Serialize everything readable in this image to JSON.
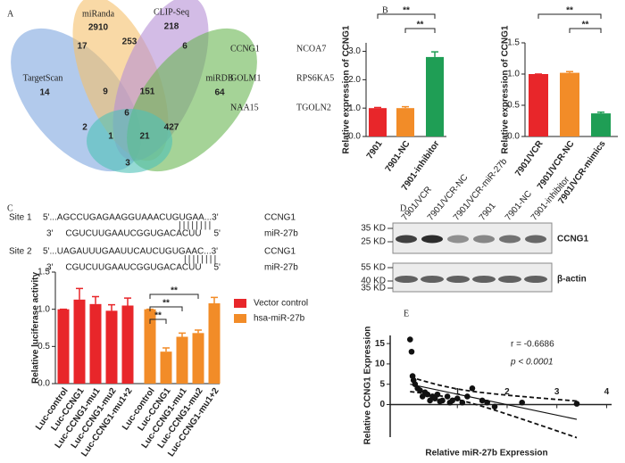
{
  "panel_labels": [
    "A",
    "B",
    "C",
    "D",
    "E"
  ],
  "venn": {
    "sets": [
      {
        "name": "TargetScan",
        "count": 14
      },
      {
        "name": "miRanda",
        "count": 2910
      },
      {
        "name": "CLIP-Seq",
        "count": 218
      },
      {
        "name": "miRDB",
        "count": 64
      }
    ],
    "regions": [
      17,
      253,
      6,
      9,
      151,
      6,
      2,
      1,
      21,
      427,
      3
    ]
  },
  "genes": [
    "CCNG1",
    "NCOA7",
    "GOLM1",
    "RPS6KA5",
    "NAA15",
    "TGOLN2"
  ],
  "sites": [
    {
      "label": "Site 1",
      "target": "5'...AGCCUGAGAAGGUAAACUGUGAA...3'",
      "target_name": "CCNG1",
      "pairing": "||||||||",
      "mirna": "3'     CGUCUUGAAUCGGUGACACUU     5'",
      "mirna_name": "miR-27b"
    },
    {
      "label": "Site 2",
      "target": "5'...UAGAUUUGAAUUCAUCUGUGAAC...3'",
      "target_name": "CCNG1",
      "pairing": "||||||||",
      "mirna": "3'     CGUCUUGAAUCGGUGACACUU     5'",
      "mirna_name": "miR-27b"
    }
  ],
  "blot": {
    "lanes": [
      "7901/VCR",
      "7901/VCR-NC",
      "7901/VCR-miR-27b",
      "7901",
      "7901-NC",
      "7901-inhibitor"
    ],
    "markers": [
      "35 KD",
      "25 KD",
      "55 KD",
      "40 KD",
      "35 KD"
    ],
    "proteins": [
      "CCNG1",
      "β-actin"
    ]
  },
  "chart_data": [
    {
      "type": "bar",
      "ylabel": "Relative expression of CCNG1",
      "categories": [
        "7901",
        "7901-NC",
        "7901-inhibitor"
      ],
      "values": [
        1.0,
        1.0,
        2.8
      ],
      "errors": [
        0.02,
        0.05,
        0.18
      ],
      "colors": [
        "#e8262a",
        "#f28c28",
        "#1f9e55"
      ],
      "ylim": [
        0,
        3.3
      ],
      "yticks": [
        {
          "value": 0,
          "label": "0.0"
        },
        {
          "value": 1,
          "label": "1.0"
        },
        {
          "value": 2,
          "label": "2.0"
        },
        {
          "value": 3,
          "label": "3.0"
        }
      ],
      "significance": [
        "**",
        "**"
      ]
    },
    {
      "type": "bar",
      "ylabel": "Relative expression of CCNG1",
      "categories": [
        "7901/VCR",
        "7901/VCR-NC",
        "7901/VCR-mimics"
      ],
      "values": [
        1.0,
        1.02,
        0.37
      ],
      "errors": [
        0.0,
        0.02,
        0.02
      ],
      "colors": [
        "#e8262a",
        "#f28c28",
        "#1f9e55"
      ],
      "ylim": [
        0,
        1.5
      ],
      "yticks": [
        {
          "value": 0,
          "label": "0.0"
        },
        0.5,
        {
          "value": 1,
          "label": "1.0"
        },
        1.5
      ],
      "significance": [
        "**",
        "**"
      ]
    },
    {
      "type": "bar",
      "ylabel": "Relative luciferase activity",
      "categories": [
        "Luc-control",
        "Luc-CCNG1",
        "Luc-CCNG1-mu1",
        "Luc-CCNG1-mu2",
        "Luc-CCNG1-mu1+2"
      ],
      "series": [
        {
          "name": "Vector control",
          "color": "#e8262a",
          "values": [
            1.0,
            1.13,
            1.07,
            0.98,
            1.05
          ],
          "errors": [
            0.0,
            0.15,
            0.1,
            0.08,
            0.1
          ]
        },
        {
          "name": "hsa-miR-27b",
          "color": "#f28c28",
          "values": [
            1.0,
            0.43,
            0.63,
            0.68,
            1.08
          ],
          "errors": [
            0.0,
            0.05,
            0.05,
            0.04,
            0.08
          ]
        }
      ],
      "ylim": [
        0,
        1.5
      ],
      "yticks": [
        {
          "value": 0,
          "label": "0.0"
        },
        0.5,
        {
          "value": 1,
          "label": "1.0"
        },
        1.5
      ],
      "significance": [
        "**",
        "**",
        "**"
      ]
    },
    {
      "type": "scatter",
      "xlabel": "Relative miR-27b Expression",
      "ylabel": "Relative CCNG1 Expression",
      "annotations": [
        "r = -0.6686",
        "p < 0.0001"
      ],
      "x": [
        0.05,
        0.08,
        0.1,
        0.12,
        0.15,
        0.2,
        0.25,
        0.3,
        0.35,
        0.4,
        0.45,
        0.5,
        0.55,
        0.6,
        0.65,
        0.7,
        0.8,
        0.85,
        0.9,
        1.0,
        1.1,
        1.2,
        1.3,
        1.5,
        1.6,
        1.75,
        2.3,
        3.4
      ],
      "y": [
        16,
        13,
        7,
        6,
        5,
        4,
        3.5,
        2,
        3,
        2.5,
        1,
        2,
        1.5,
        2.5,
        0.8,
        1,
        2,
        0.5,
        1,
        1.5,
        0.5,
        2,
        4,
        1,
        0.5,
        -0.5,
        0.5,
        0.2
      ],
      "xlim": [
        -0.35,
        4.1
      ],
      "ylim": [
        -8,
        17
      ],
      "xticks": [
        1,
        2,
        3,
        4
      ],
      "yticks": [
        0,
        5,
        10,
        15
      ],
      "color": "#111111"
    }
  ]
}
